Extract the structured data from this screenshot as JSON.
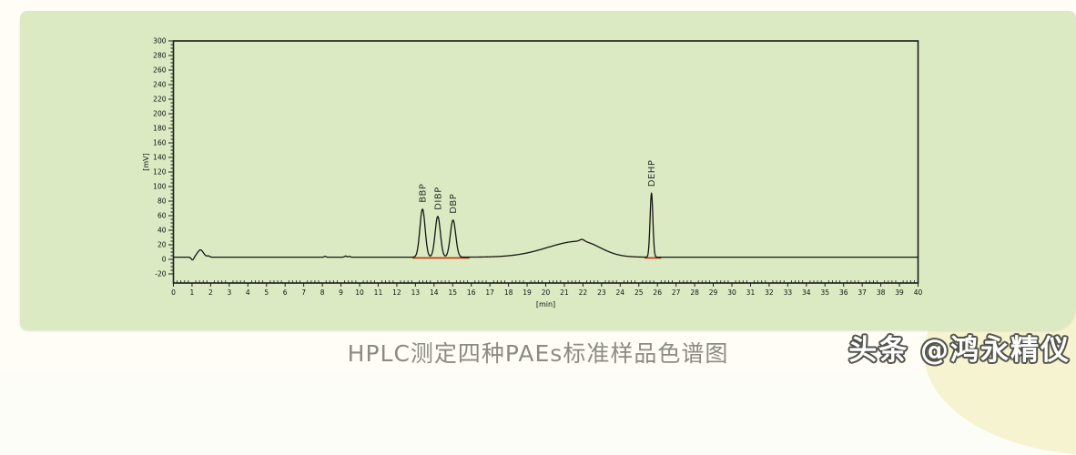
{
  "caption": "HPLC测定四种PAEs标准样品色谱图",
  "watermark": "头条 @鸿永精仪",
  "colors": {
    "panel_background": "#dbeac2",
    "page_background": "#fffdf6",
    "decor_blob": "#f6f3d1",
    "trace": "#151515",
    "integration_baseline": "#c23000",
    "axis": "#1c1c1c",
    "caption_text": "#8b8b86"
  },
  "chart_data": {
    "type": "line",
    "title": "",
    "xlabel": "[min]",
    "ylabel": "[mV]",
    "xlim": [
      0,
      40
    ],
    "ylim": [
      -20,
      300
    ],
    "x_major_tick": 1,
    "x_minor_tick": 0.2,
    "y_major_tick": 20,
    "y_minor_tick": 5,
    "grid": false,
    "legend": false,
    "baseline_mv": 3,
    "labeled_peaks": [
      {
        "name": "BBP",
        "retention_min": 13.38,
        "apex_mv": 69
      },
      {
        "name": "DIBP",
        "retention_min": 14.2,
        "apex_mv": 59
      },
      {
        "name": "DBP",
        "retention_min": 15.02,
        "apex_mv": 54
      },
      {
        "name": "DEHP",
        "retention_min": 25.68,
        "apex_mv": 91
      }
    ],
    "unlabeled_features": [
      {
        "desc": "injection disturbance",
        "retention_min": 1.45,
        "apex_mv": 13
      },
      {
        "desc": "broad baseline hump",
        "retention_min": 21.9,
        "apex_mv": 25
      }
    ],
    "integration_segments_min": [
      [
        12.85,
        15.9
      ],
      [
        25.3,
        26.2
      ]
    ],
    "integration_level_mv": 2,
    "render_profile": [
      {
        "c": 1.03,
        "h": -4,
        "s": 0.07
      },
      {
        "c": 1.45,
        "h": 10,
        "s": 0.16
      },
      {
        "c": 1.88,
        "h": 1.5,
        "s": 0.07
      },
      {
        "c": 8.15,
        "h": 1.1,
        "s": 0.05
      },
      {
        "c": 9.25,
        "h": 1.5,
        "s": 0.06
      },
      {
        "c": 9.45,
        "h": 1.1,
        "s": 0.05
      },
      {
        "c": 13.38,
        "h": 66,
        "s": 0.14
      },
      {
        "c": 14.2,
        "h": 56,
        "s": 0.14
      },
      {
        "c": 15.02,
        "h": 51,
        "s": 0.145
      },
      {
        "c": 21.85,
        "h": 22,
        "sl": 1.75,
        "sr": 1.05
      },
      {
        "c": 21.95,
        "h": 2.5,
        "s": 0.12
      },
      {
        "c": 25.68,
        "h": 88,
        "s": 0.075
      }
    ]
  }
}
